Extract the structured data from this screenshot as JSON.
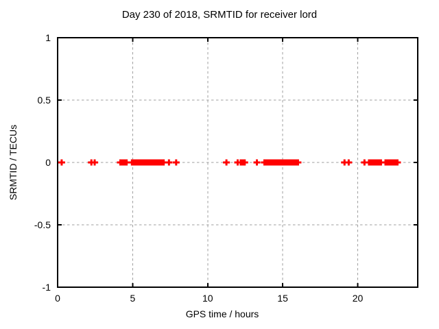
{
  "chart_data": {
    "type": "scatter",
    "title": "Day 230 of 2018, SRMTID for receiver lord",
    "xlabel": "GPS time / hours",
    "ylabel": "SRMTID / TECUs",
    "xlim": [
      0,
      24
    ],
    "ylim": [
      -1,
      1
    ],
    "xticks": [
      0,
      5,
      10,
      15,
      20
    ],
    "xtick_labels": [
      "0",
      "5",
      "10",
      "15",
      "20"
    ],
    "yticks": [
      1,
      0.5,
      0,
      -0.5,
      -1
    ],
    "ytick_labels": [
      "1",
      "0.5",
      "0",
      "-0.5",
      "-1"
    ],
    "grid": true,
    "legend": "none",
    "marker": "plus",
    "series": [
      {
        "name": "SRMTID",
        "color": "#ff0000",
        "y": 0,
        "singles_x": [
          0.27,
          2.25,
          2.47,
          7.42,
          7.9,
          11.25,
          12.0,
          13.28,
          19.12,
          19.4,
          20.45
        ],
        "segments_x": [
          [
            4.18,
            4.6
          ],
          [
            4.95,
            7.07
          ],
          [
            12.2,
            12.47
          ],
          [
            13.78,
            16.02
          ],
          [
            20.75,
            21.55
          ],
          [
            21.85,
            22.65
          ]
        ]
      }
    ]
  },
  "colors": {
    "background": "#ffffff",
    "border": "#000000",
    "grid": "#9f9f9f",
    "marker": "#ff0000",
    "text": "#000000"
  }
}
